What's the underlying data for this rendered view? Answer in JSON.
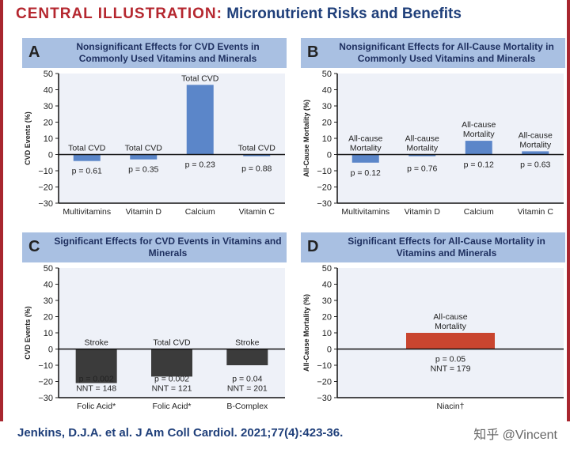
{
  "title": {
    "prefix": "CENTRAL ILLUSTRATION:",
    "main": "Micronutrient Risks and Benefits"
  },
  "citation": "Jenkins, D.J.A. et al. J Am Coll Cardiol. 2021;77(4):423-36.",
  "watermark": "知乎 @Vincent",
  "colors": {
    "blue": "#5b86c9",
    "dark": "#3b3b3b",
    "red": "#c9452f",
    "plot_bg": "#eef1f8",
    "header": "#a9c0e2"
  },
  "chart_data": [
    {
      "type": "bar",
      "panel": "A",
      "title": "Nonsignificant Effects for CVD Events in Commonly Used Vitamins and Minerals",
      "ylabel": "CVD Events (%)",
      "ylim": [
        -30,
        50
      ],
      "yticks": [
        50,
        40,
        30,
        20,
        10,
        0,
        -10,
        -20,
        -30
      ],
      "categories": [
        "Multivitamins",
        "Vitamin D",
        "Calcium",
        "Vitamin C"
      ],
      "values": [
        -4,
        -3,
        43,
        -1
      ],
      "color": "blue",
      "labels": [
        [
          "Total CVD"
        ],
        [
          "Total CVD"
        ],
        [
          "Total CVD"
        ],
        [
          "Total CVD"
        ]
      ],
      "stats": [
        [
          "p = 0.61"
        ],
        [
          "p = 0.35"
        ],
        [
          "p = 0.23"
        ],
        [
          "p = 0.88"
        ]
      ]
    },
    {
      "type": "bar",
      "panel": "B",
      "title": "Nonsignificant Effects for All-Cause Mortality in Commonly Used Vitamins and Minerals",
      "ylabel": "All-Cause Mortality (%)",
      "ylim": [
        -30,
        50
      ],
      "yticks": [
        50,
        40,
        30,
        20,
        10,
        0,
        -10,
        -20,
        -30
      ],
      "categories": [
        "Multivitamins",
        "Vitamin D",
        "Calcium",
        "Vitamin C"
      ],
      "values": [
        -5,
        -1,
        8.5,
        2
      ],
      "color": "blue",
      "labels": [
        [
          "All-cause",
          "Mortality"
        ],
        [
          "All-cause",
          "Mortality"
        ],
        [
          "All-cause",
          "Mortality"
        ],
        [
          "All-cause",
          "Mortality"
        ]
      ],
      "stats": [
        [
          "p = 0.12"
        ],
        [
          "p = 0.76"
        ],
        [
          "p = 0.12"
        ],
        [
          "p = 0.63"
        ]
      ]
    },
    {
      "type": "bar",
      "panel": "C",
      "title": "Significant Effects for CVD Events in Vitamins and Minerals",
      "ylabel": "CVD Events (%)",
      "ylim": [
        -30,
        50
      ],
      "yticks": [
        50,
        40,
        30,
        20,
        10,
        0,
        -10,
        -20,
        -30
      ],
      "categories": [
        "Folic Acid*",
        "Folic Acid*",
        "B-Complex"
      ],
      "values": [
        -21,
        -17,
        -10
      ],
      "color": "dark",
      "labels": [
        [
          "Stroke"
        ],
        [
          "Total CVD"
        ],
        [
          "Stroke"
        ]
      ],
      "stats": [
        [
          "p = 0.002",
          "NNT = 148"
        ],
        [
          "p = 0.002",
          "NNT = 121"
        ],
        [
          "p = 0.04",
          "NNT = 201"
        ]
      ]
    },
    {
      "type": "bar",
      "panel": "D",
      "title": "Significant Effects for All-Cause Mortality in Vitamins and Minerals",
      "ylabel": "All-Cause Mortality (%)",
      "ylim": [
        -30,
        50
      ],
      "yticks": [
        50,
        40,
        30,
        20,
        10,
        0,
        -10,
        -20,
        -30
      ],
      "categories": [
        "Niacin†"
      ],
      "values": [
        10
      ],
      "color": "red",
      "labels": [
        [
          "All-cause",
          "Mortality"
        ]
      ],
      "stats": [
        [
          "p = 0.05",
          "NNT = 179"
        ]
      ]
    }
  ]
}
